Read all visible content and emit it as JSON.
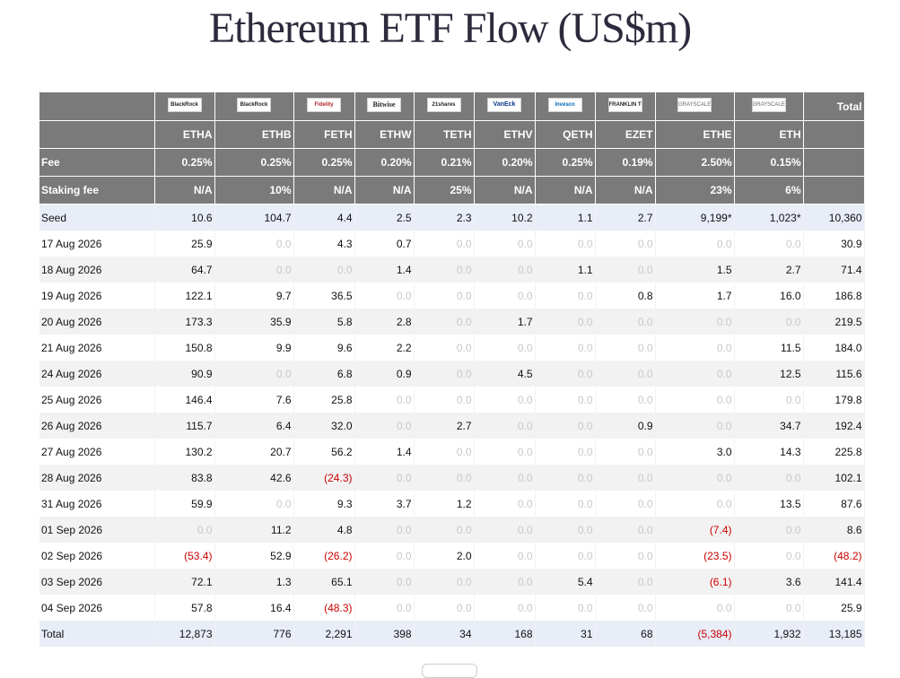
{
  "title": "Ethereum ETF Flow (US$m)",
  "header": {
    "issuers": [
      {
        "text": "BlackRock",
        "icon": "blackrock-logo"
      },
      {
        "text": "BlackRock",
        "icon": "blackrock-logo"
      },
      {
        "text": "Fidelity",
        "icon": "fidelity-logo"
      },
      {
        "text": "Bitwise",
        "icon": "bitwise-logo"
      },
      {
        "text": "21shares",
        "icon": "21shares-logo"
      },
      {
        "text": "VanEck",
        "icon": "vaneck-logo"
      },
      {
        "text": "Invesco",
        "icon": "invesco-logo"
      },
      {
        "text": "FRANKLIN TEMPLETON",
        "icon": "franklin-templeton-logo"
      },
      {
        "text": "GRAYSCALE",
        "icon": "grayscale-logo"
      },
      {
        "text": "GRAYSCALE",
        "icon": "grayscale-logo"
      }
    ],
    "total_label": "Total",
    "tickers": [
      "ETHA",
      "ETHB",
      "FETH",
      "ETHW",
      "TETH",
      "ETHV",
      "QETH",
      "EZET",
      "ETHE",
      "ETH"
    ],
    "fee_label": "Fee",
    "fees": [
      "0.25%",
      "0.25%",
      "0.25%",
      "0.20%",
      "0.21%",
      "0.20%",
      "0.25%",
      "0.19%",
      "2.50%",
      "0.15%"
    ],
    "staking_label": "Staking fee",
    "staking": [
      "N/A",
      "10%",
      "N/A",
      "N/A",
      "25%",
      "N/A",
      "N/A",
      "N/A",
      "23%",
      "6%"
    ]
  },
  "rows": [
    {
      "label": "Seed",
      "cells": [
        "10.6",
        "104.7",
        "4.4",
        "2.5",
        "2.3",
        "10.2",
        "1.1",
        "2.7",
        "9,199*",
        "1,023*"
      ],
      "total": "10,360"
    },
    {
      "label": "17 Aug 2026",
      "cells": [
        "25.9",
        "0.0",
        "4.3",
        "0.7",
        "0.0",
        "0.0",
        "0.0",
        "0.0",
        "0.0",
        "0.0"
      ],
      "total": "30.9"
    },
    {
      "label": "18 Aug 2026",
      "cells": [
        "64.7",
        "0.0",
        "0.0",
        "1.4",
        "0.0",
        "0.0",
        "1.1",
        "0.0",
        "1.5",
        "2.7"
      ],
      "total": "71.4"
    },
    {
      "label": "19 Aug 2026",
      "cells": [
        "122.1",
        "9.7",
        "36.5",
        "0.0",
        "0.0",
        "0.0",
        "0.0",
        "0.8",
        "1.7",
        "16.0"
      ],
      "total": "186.8"
    },
    {
      "label": "20 Aug 2026",
      "cells": [
        "173.3",
        "35.9",
        "5.8",
        "2.8",
        "0.0",
        "1.7",
        "0.0",
        "0.0",
        "0.0",
        "0.0"
      ],
      "total": "219.5"
    },
    {
      "label": "21 Aug 2026",
      "cells": [
        "150.8",
        "9.9",
        "9.6",
        "2.2",
        "0.0",
        "0.0",
        "0.0",
        "0.0",
        "0.0",
        "11.5"
      ],
      "total": "184.0"
    },
    {
      "label": "24 Aug 2026",
      "cells": [
        "90.9",
        "0.0",
        "6.8",
        "0.9",
        "0.0",
        "4.5",
        "0.0",
        "0.0",
        "0.0",
        "12.5"
      ],
      "total": "115.6"
    },
    {
      "label": "25 Aug 2026",
      "cells": [
        "146.4",
        "7.6",
        "25.8",
        "0.0",
        "0.0",
        "0.0",
        "0.0",
        "0.0",
        "0.0",
        "0.0"
      ],
      "total": "179.8"
    },
    {
      "label": "26 Aug 2026",
      "cells": [
        "115.7",
        "6.4",
        "32.0",
        "0.0",
        "2.7",
        "0.0",
        "0.0",
        "0.9",
        "0.0",
        "34.7"
      ],
      "total": "192.4"
    },
    {
      "label": "27 Aug 2026",
      "cells": [
        "130.2",
        "20.7",
        "56.2",
        "1.4",
        "0.0",
        "0.0",
        "0.0",
        "0.0",
        "3.0",
        "14.3"
      ],
      "total": "225.8"
    },
    {
      "label": "28 Aug 2026",
      "cells": [
        "83.8",
        "42.6",
        "(24.3)",
        "0.0",
        "0.0",
        "0.0",
        "0.0",
        "0.0",
        "0.0",
        "0.0"
      ],
      "total": "102.1"
    },
    {
      "label": "31 Aug 2026",
      "cells": [
        "59.9",
        "0.0",
        "9.3",
        "3.7",
        "1.2",
        "0.0",
        "0.0",
        "0.0",
        "0.0",
        "13.5"
      ],
      "total": "87.6"
    },
    {
      "label": "01 Sep 2026",
      "cells": [
        "0.0",
        "11.2",
        "4.8",
        "0.0",
        "0.0",
        "0.0",
        "0.0",
        "0.0",
        "(7.4)",
        "0.0"
      ],
      "total": "8.6"
    },
    {
      "label": "02 Sep 2026",
      "cells": [
        "(53.4)",
        "52.9",
        "(26.2)",
        "0.0",
        "2.0",
        "0.0",
        "0.0",
        "0.0",
        "(23.5)",
        "0.0"
      ],
      "total": "(48.2)"
    },
    {
      "label": "03 Sep 2026",
      "cells": [
        "72.1",
        "1.3",
        "65.1",
        "0.0",
        "0.0",
        "0.0",
        "5.4",
        "0.0",
        "(6.1)",
        "3.6"
      ],
      "total": "141.4"
    },
    {
      "label": "04 Sep 2026",
      "cells": [
        "57.8",
        "16.4",
        "(48.3)",
        "0.0",
        "0.0",
        "0.0",
        "0.0",
        "0.0",
        "0.0",
        "0.0"
      ],
      "total": "25.9"
    },
    {
      "label": "Total",
      "cells": [
        "12,873",
        "776",
        "2,291",
        "398",
        "34",
        "168",
        "31",
        "68",
        "(5,384)",
        "1,932"
      ],
      "total": "13,185"
    }
  ],
  "colors": {
    "header_bg": "#7a7a7a",
    "negative": "#cc0000",
    "zero": "#c8c8c8",
    "highlight_row": "#e8edf8",
    "alt_row": "#f2f2f2"
  }
}
